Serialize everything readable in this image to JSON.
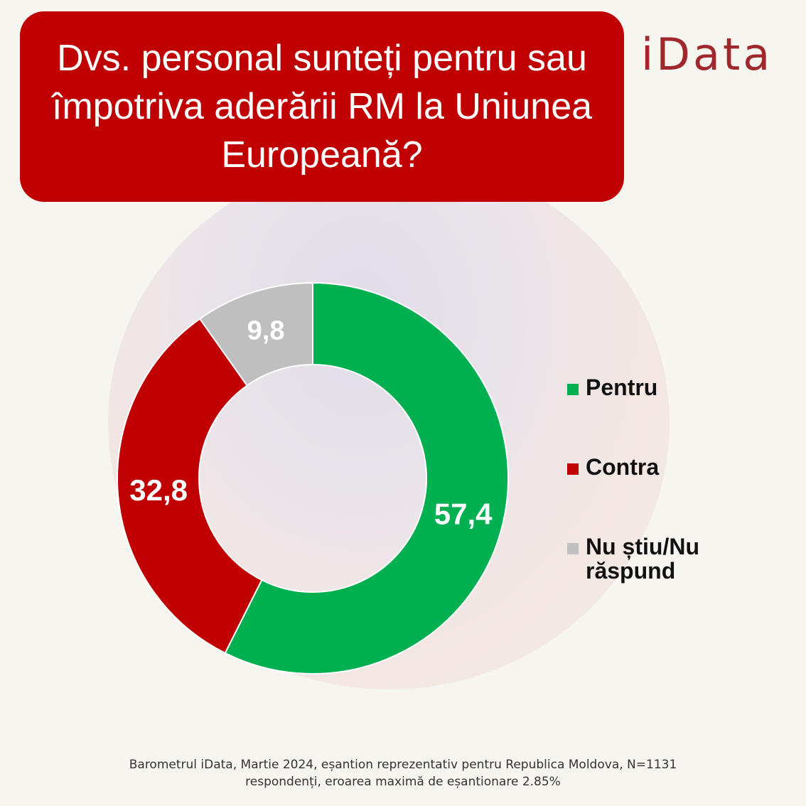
{
  "title": "Dvs. personal sunteți pentru sau împotriva aderării RM la Uniunea Europeană?",
  "logo": "iData",
  "footnote": {
    "line1": "Barometrul iData, Martie 2024, eșantion reprezentativ pentru Republica Moldova, N=1131",
    "line2": "respondenți, eroarea maximă de eșantionare 2.85%"
  },
  "chart_data": {
    "type": "pie",
    "donut": true,
    "title": "Dvs. personal sunteți pentru sau împotriva aderării RM la Uniunea Europeană?",
    "categories": [
      "Pentru",
      "Contra",
      "Nu știu/Nu răspund"
    ],
    "values": [
      57.4,
      32.8,
      9.8
    ],
    "data_labels": [
      "57,4",
      "32,8",
      "9,8"
    ],
    "colors": [
      "#00b050",
      "#c00000",
      "#bfbfbf"
    ],
    "legend_position": "right"
  }
}
